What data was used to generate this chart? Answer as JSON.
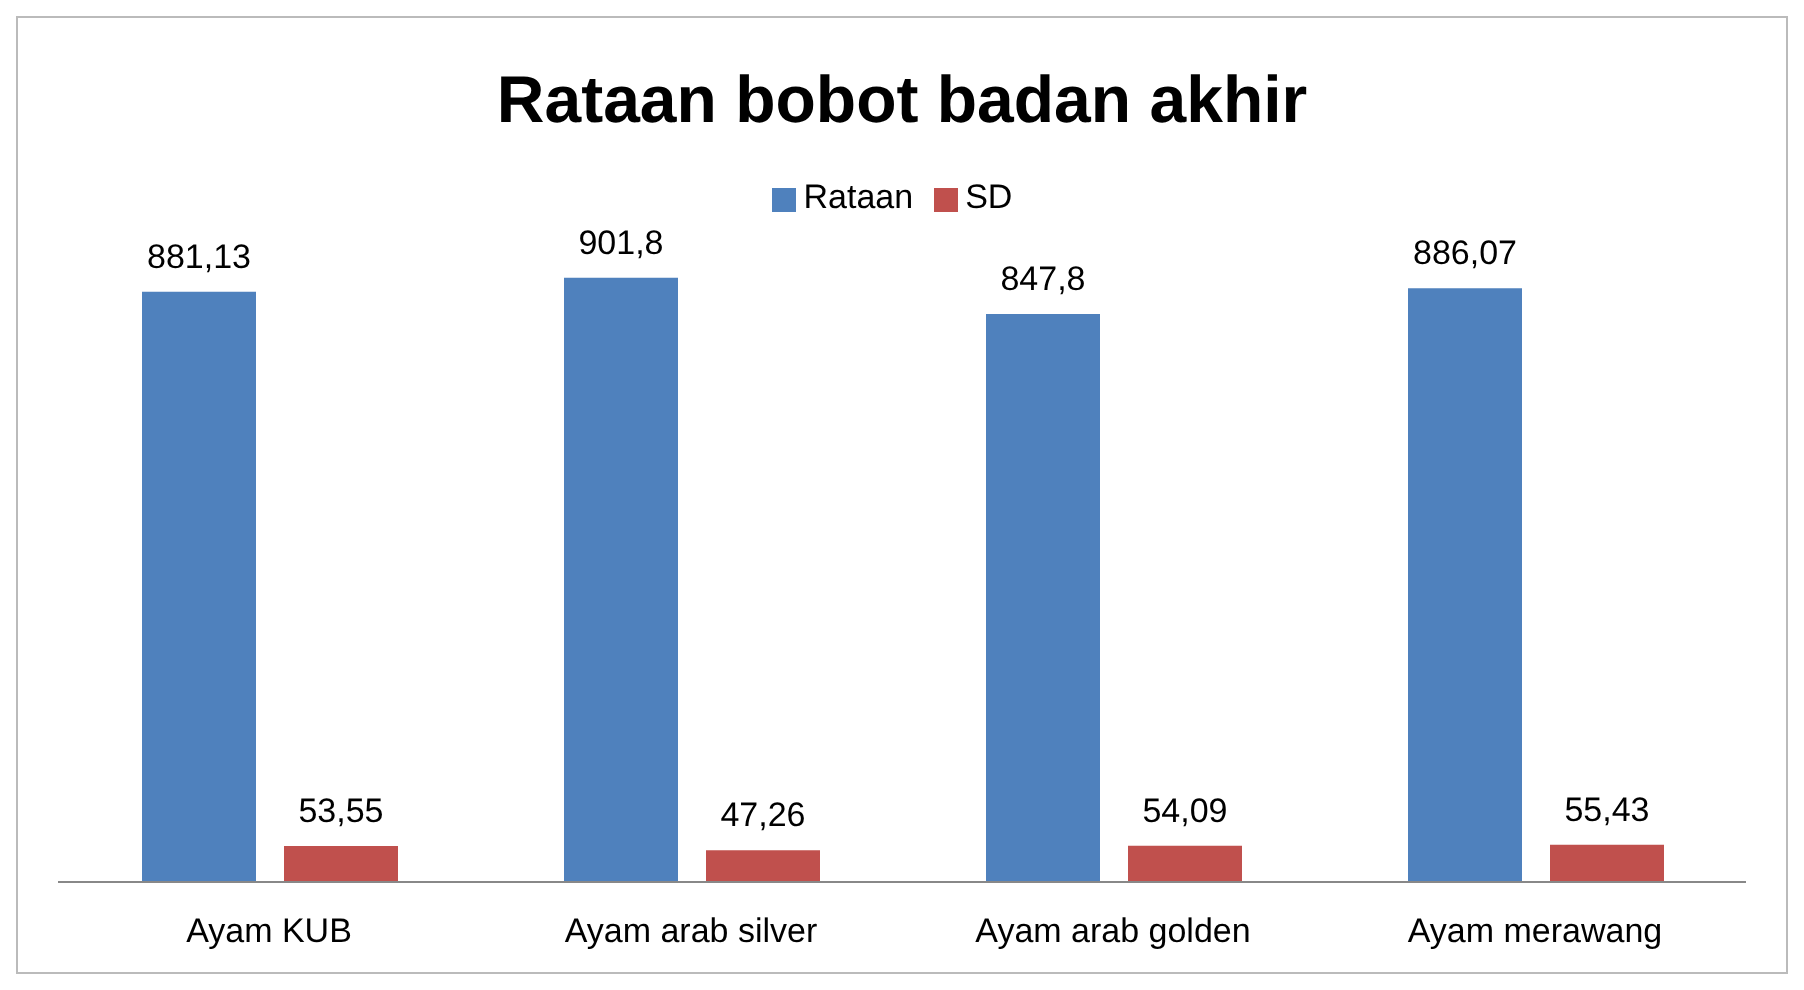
{
  "chart_data": {
    "type": "bar",
    "title": "Rataan bobot badan akhir",
    "categories": [
      "Ayam KUB",
      "Ayam arab silver",
      "Ayam arab golden",
      "Ayam merawang"
    ],
    "series": [
      {
        "name": "Rataan",
        "color": "#4f81bd",
        "values": [
          881.13,
          901.8,
          847.8,
          886.07
        ],
        "value_labels": [
          "881,13",
          "901,8",
          "847,8",
          "886,07"
        ]
      },
      {
        "name": "SD",
        "color": "#c0504d",
        "values": [
          53.55,
          47.26,
          54.09,
          55.43
        ],
        "value_labels": [
          "53,55",
          "47,26",
          "54,09",
          "55,43"
        ]
      }
    ],
    "legend": "top",
    "grid": false
  }
}
